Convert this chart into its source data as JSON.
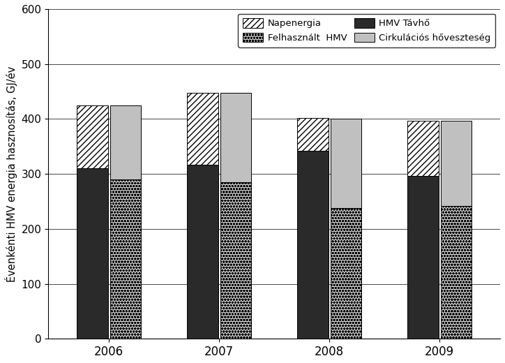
{
  "years": [
    2006,
    2007,
    2008,
    2009
  ],
  "bar_width": 0.28,
  "bar_gap": 0.02,
  "napenergia": [
    115,
    130,
    60,
    100
  ],
  "hmv_tavho": [
    310,
    317,
    342,
    297
  ],
  "felhasznalt_hmv": [
    290,
    285,
    238,
    242
  ],
  "cirkulacios": [
    135,
    162,
    163,
    155
  ],
  "ylim": [
    0,
    600
  ],
  "yticks": [
    0,
    100,
    200,
    300,
    400,
    500,
    600
  ],
  "ylabel": "Évenkénti HMV energia hasznosítás, GJ/év",
  "legend_labels": [
    "Napenergia",
    "Felhasznált  HMV",
    "HMV Távhő",
    "Cirkulációs hőveszteség"
  ],
  "color_napenergia": "#ffffff",
  "color_felhasznalt": "#d0d0d0",
  "color_hmv_tavho": "#2a2a2a",
  "color_cirkulacios": "#c0c0c0",
  "hatch_napenergia": "////",
  "hatch_felhasznalt": "oooo",
  "hatch_cirkulacios": ""
}
